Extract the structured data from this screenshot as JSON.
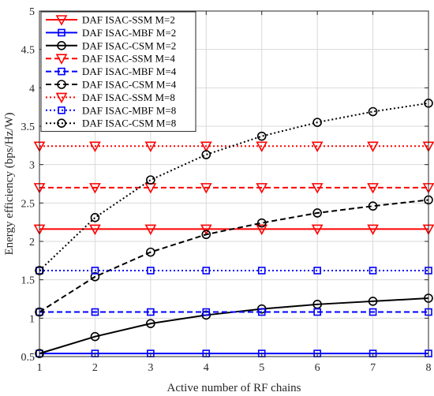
{
  "chart_data": {
    "type": "line",
    "xlabel": "Active number of RF chains",
    "ylabel": "Energy efficiency (bps/Hz/W)",
    "x": [
      1,
      2,
      3,
      4,
      5,
      6,
      7,
      8
    ],
    "xlim": [
      1,
      8
    ],
    "ylim": [
      0.5,
      5
    ],
    "xticks": [
      "1",
      "2",
      "3",
      "4",
      "5",
      "6",
      "7",
      "8"
    ],
    "yticks": [
      "0.5",
      "1",
      "1.5",
      "2",
      "2.5",
      "3",
      "3.5",
      "4",
      "4.5",
      "5"
    ],
    "grid": true,
    "legend_position": "top-left",
    "series": [
      {
        "name": "DAF ISAC-SSM M=2",
        "values": [
          2.16,
          2.16,
          2.16,
          2.16,
          2.16,
          2.16,
          2.16,
          2.16
        ],
        "color": "#ff0000",
        "dash": "solid",
        "marker": "triangle-down"
      },
      {
        "name": "DAF ISAC-MBF M=2",
        "values": [
          0.54,
          0.54,
          0.54,
          0.54,
          0.54,
          0.54,
          0.54,
          0.54
        ],
        "color": "#0000ff",
        "dash": "solid",
        "marker": "square"
      },
      {
        "name": "DAF ISAC-CSM M=2",
        "values": [
          0.54,
          0.76,
          0.93,
          1.04,
          1.12,
          1.18,
          1.22,
          1.26
        ],
        "color": "#000000",
        "dash": "solid",
        "marker": "circle"
      },
      {
        "name": "DAF ISAC-SSM M=4",
        "values": [
          2.7,
          2.7,
          2.7,
          2.7,
          2.7,
          2.7,
          2.7,
          2.7
        ],
        "color": "#ff0000",
        "dash": "dashed",
        "marker": "triangle-down"
      },
      {
        "name": "DAF ISAC-MBF M=4",
        "values": [
          1.08,
          1.08,
          1.08,
          1.08,
          1.08,
          1.08,
          1.08,
          1.08
        ],
        "color": "#0000ff",
        "dash": "dashed",
        "marker": "square"
      },
      {
        "name": "DAF ISAC-CSM M=4",
        "values": [
          1.08,
          1.54,
          1.86,
          2.09,
          2.24,
          2.37,
          2.46,
          2.54
        ],
        "color": "#000000",
        "dash": "dashed",
        "marker": "circle"
      },
      {
        "name": "DAF ISAC-SSM M=8",
        "values": [
          3.24,
          3.24,
          3.24,
          3.24,
          3.24,
          3.24,
          3.24,
          3.24
        ],
        "color": "#ff0000",
        "dash": "dotted",
        "marker": "triangle-down"
      },
      {
        "name": "DAF ISAC-MBF M=8",
        "values": [
          1.62,
          1.62,
          1.62,
          1.62,
          1.62,
          1.62,
          1.62,
          1.62
        ],
        "color": "#0000ff",
        "dash": "dotted",
        "marker": "square"
      },
      {
        "name": "DAF ISAC-CSM M=8",
        "values": [
          1.62,
          2.31,
          2.8,
          3.13,
          3.37,
          3.55,
          3.69,
          3.8
        ],
        "color": "#000000",
        "dash": "dotted",
        "marker": "circle"
      }
    ]
  }
}
